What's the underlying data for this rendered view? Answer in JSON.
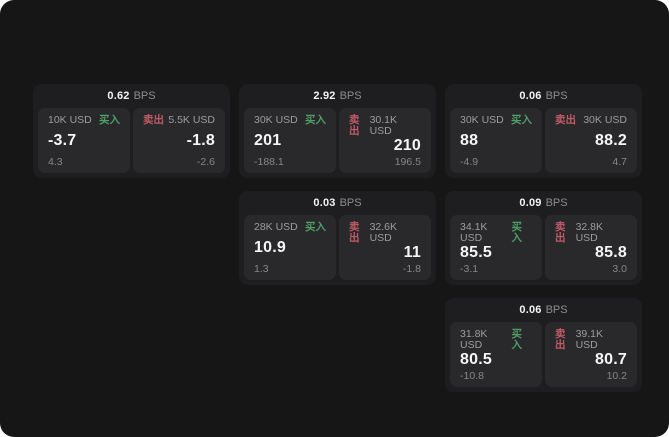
{
  "labels": {
    "bps_unit": "BPS",
    "buy": "买入",
    "sell": "卖出"
  },
  "colors": {
    "buy_green": "#4e9e68",
    "sell_red": "#c25a66",
    "page_bg": "#161617",
    "card_bg": "#1e1e20",
    "panel_bg": "#29292b"
  },
  "cards": [
    {
      "bps": "0.62",
      "buy": {
        "amount": "10K USD",
        "main": "-3.7",
        "sub": "4.3"
      },
      "sell": {
        "amount": "5.5K USD",
        "main": "-1.8",
        "sub": "-2.6"
      }
    },
    {
      "bps": "2.92",
      "buy": {
        "amount": "30K USD",
        "main": "201",
        "sub": "-188.1"
      },
      "sell": {
        "amount": "30.1K USD",
        "main": "210",
        "sub": "196.5"
      }
    },
    {
      "bps": "0.06",
      "buy": {
        "amount": "30K USD",
        "main": "88",
        "sub": "-4.9"
      },
      "sell": {
        "amount": "30K USD",
        "main": "88.2",
        "sub": "4.7"
      }
    },
    {
      "bps": "0.03",
      "buy": {
        "amount": "28K USD",
        "main": "10.9",
        "sub": "1.3"
      },
      "sell": {
        "amount": "32.6K USD",
        "main": "11",
        "sub": "-1.8"
      }
    },
    {
      "bps": "0.09",
      "buy": {
        "amount": "34.1K USD",
        "main": "85.5",
        "sub": "-3.1"
      },
      "sell": {
        "amount": "32.8K USD",
        "main": "85.8",
        "sub": "3.0"
      }
    },
    {
      "bps": "0.06",
      "buy": {
        "amount": "31.8K USD",
        "main": "80.5",
        "sub": "-10.8"
      },
      "sell": {
        "amount": "39.1K USD",
        "main": "80.7",
        "sub": "10.2"
      }
    }
  ]
}
